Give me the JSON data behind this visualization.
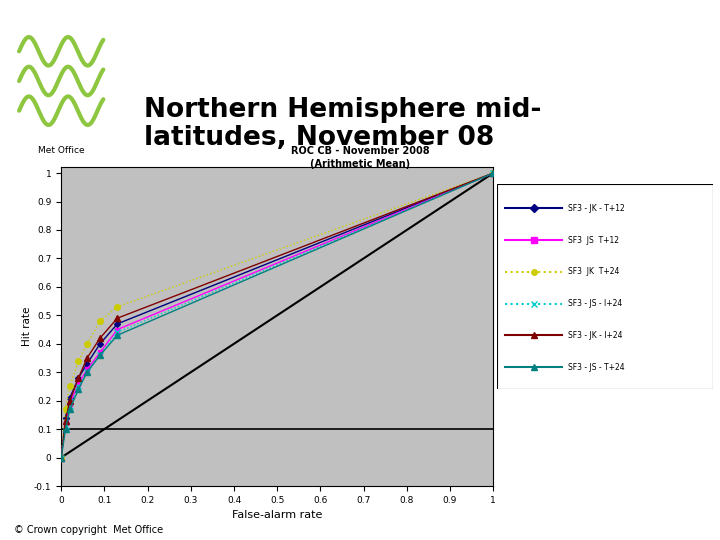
{
  "chart_title_line1": "ROC CB - November 2008",
  "chart_title_line2": "(Arithmetic Mean)",
  "xlabel": "False-alarm rate",
  "ylabel": "Hit rate",
  "xlim": [
    0,
    1
  ],
  "ylim": [
    -0.1,
    1.02
  ],
  "background_color": "#c0c0c0",
  "fig_background": "#ffffff",
  "series": [
    {
      "label": "SF3 - JK - T+12",
      "color": "#000080",
      "linestyle": "-",
      "marker": "D",
      "markersize": 3,
      "linewidth": 1.0,
      "x": [
        0.0,
        0.01,
        0.02,
        0.04,
        0.06,
        0.09,
        0.13,
        1.0
      ],
      "y": [
        0.0,
        0.14,
        0.21,
        0.28,
        0.33,
        0.4,
        0.47,
        1.0
      ]
    },
    {
      "label": "SF3  JS  T+12",
      "color": "#ff00ff",
      "linestyle": "-",
      "marker": "s",
      "markersize": 3,
      "linewidth": 1.0,
      "x": [
        0.0,
        0.01,
        0.02,
        0.04,
        0.06,
        0.09,
        0.13,
        1.0
      ],
      "y": [
        0.0,
        0.12,
        0.19,
        0.26,
        0.31,
        0.37,
        0.45,
        1.0
      ]
    },
    {
      "label": "SF3  JK  T+24",
      "color": "#cccc00",
      "linestyle": ":",
      "marker": "o",
      "markersize": 4,
      "linewidth": 1.0,
      "x": [
        0.0,
        0.01,
        0.02,
        0.04,
        0.06,
        0.09,
        0.13,
        1.0
      ],
      "y": [
        0.0,
        0.17,
        0.25,
        0.34,
        0.4,
        0.48,
        0.53,
        1.0
      ]
    },
    {
      "label": "SF3 - JS - I+24",
      "color": "#00cccc",
      "linestyle": ":",
      "marker": "x",
      "markersize": 4,
      "linewidth": 1.0,
      "x": [
        0.0,
        0.01,
        0.02,
        0.04,
        0.06,
        0.09,
        0.13,
        1.0
      ],
      "y": [
        0.0,
        0.11,
        0.18,
        0.25,
        0.3,
        0.36,
        0.44,
        1.0
      ]
    },
    {
      "label": "SF3 - JK - I+24",
      "color": "#800000",
      "linestyle": "-",
      "marker": "^",
      "markersize": 4,
      "linewidth": 1.0,
      "x": [
        0.0,
        0.01,
        0.02,
        0.04,
        0.06,
        0.09,
        0.13,
        1.0
      ],
      "y": [
        0.0,
        0.13,
        0.2,
        0.28,
        0.35,
        0.42,
        0.49,
        1.0
      ]
    },
    {
      "label": "SF3 - JS - T+24",
      "color": "#008080",
      "linestyle": "-",
      "marker": "^",
      "markersize": 4,
      "linewidth": 1.0,
      "x": [
        0.0,
        0.01,
        0.02,
        0.04,
        0.06,
        0.09,
        0.13,
        1.0
      ],
      "y": [
        0.0,
        0.1,
        0.17,
        0.24,
        0.3,
        0.36,
        0.43,
        1.0
      ]
    }
  ],
  "diagonal_color": "#000000",
  "hline_y": 0.1,
  "hline_color": "#000000",
  "copyright": "© Crown copyright  Met Office",
  "logo_color": "#8dc63f",
  "metoffice_text": "Met Office",
  "main_title": "Northern Hemisphere mid-\nlatitudes, November 08"
}
